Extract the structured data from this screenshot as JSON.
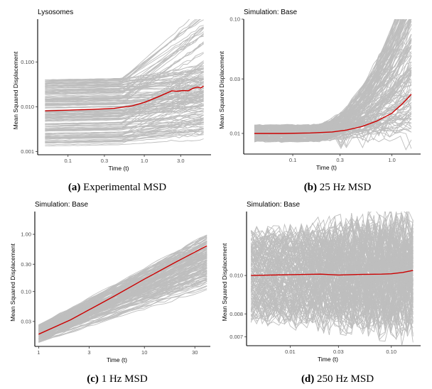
{
  "figure": {
    "captions": [
      {
        "letter": "(a)",
        "text": " Experimental MSD"
      },
      {
        "letter": "(b)",
        "text": " 25 Hz MSD"
      },
      {
        "letter": "(c)",
        "text": " 1 Hz MSD"
      },
      {
        "letter": "(d)",
        "text": " 250 Hz MSD"
      }
    ],
    "colors": {
      "individual": "#bebebe",
      "mean": "#cc0000",
      "axis": "#000000"
    }
  },
  "chart_data": [
    {
      "type": "line",
      "title": "Lysosomes",
      "xlabel": "Time (t)",
      "ylabel": "Mean Squared Displacement",
      "xscale": "log10",
      "yscale": "log10",
      "xlim": [
        0.04,
        7.5
      ],
      "ylim": [
        0.00085,
        0.9
      ],
      "xticks": [
        0.1,
        0.3,
        1.0,
        3.0
      ],
      "xtick_labels": [
        "0.1",
        "0.3",
        "1.0",
        "3.0"
      ],
      "yticks": [
        0.001,
        0.01,
        0.1
      ],
      "ytick_labels": [
        "0.001",
        "0.010",
        "0.100"
      ],
      "legend": "none",
      "grid": false,
      "series": [
        {
          "name": "mean",
          "color": "#cc0000",
          "x": [
            0.05,
            0.1,
            0.2,
            0.4,
            0.7,
            1.0,
            1.5,
            2.3,
            2.7,
            3.2,
            3.8,
            4.4,
            5.0,
            5.5,
            6.0
          ],
          "y": [
            0.0081,
            0.0084,
            0.0087,
            0.0092,
            0.0105,
            0.0125,
            0.0165,
            0.0226,
            0.0222,
            0.023,
            0.0228,
            0.026,
            0.0275,
            0.0262,
            0.029
          ]
        },
        {
          "name": "individual trajectories",
          "color": "#bebebe",
          "count": 150,
          "description": "MSD of individual lysosomes; range at t=0.05 approx 0.0012 to 0.024; range at t=6 approx 0.0035 to 0.6"
        }
      ]
    },
    {
      "type": "line",
      "title": "Simulation: Base",
      "xlabel": "Time (t)",
      "ylabel": "Mean Squared Displacement",
      "xscale": "log10",
      "yscale": "log10",
      "xlim": [
        0.032,
        1.95
      ],
      "ylim": [
        0.0066,
        0.1
      ],
      "xticks": [
        0.1,
        0.3,
        1.0
      ],
      "xtick_labels": [
        "0.1",
        "0.3",
        "1.0"
      ],
      "yticks": [
        0.01,
        0.03,
        0.1
      ],
      "ytick_labels": [
        "0.01",
        "0.03",
        "0.10"
      ],
      "legend": "none",
      "grid": false,
      "series": [
        {
          "name": "mean",
          "color": "#cc0000",
          "x": [
            0.041,
            0.08,
            0.15,
            0.25,
            0.35,
            0.5,
            0.7,
            1.0,
            1.3,
            1.57
          ],
          "y": [
            0.01,
            0.01,
            0.0101,
            0.0103,
            0.0107,
            0.0115,
            0.0128,
            0.015,
            0.0185,
            0.022
          ]
        },
        {
          "name": "individual trajectories",
          "color": "#bebebe",
          "count": 150,
          "description": "simulated trajectories; range at t=0.04 approx 0.0085 to 0.0118; range at t=1.57 approx 0.0075 to 0.088"
        }
      ]
    },
    {
      "type": "line",
      "title": "Simulation: Base",
      "xlabel": "Time (t)",
      "ylabel": "Mean Squared Displacement",
      "xscale": "log10",
      "yscale": "log10",
      "xlim": [
        0.92,
        42
      ],
      "ylim": [
        0.011,
        2.5
      ],
      "xticks": [
        1,
        3,
        10,
        30
      ],
      "xtick_labels": [
        "1",
        "3",
        "10",
        "30"
      ],
      "yticks": [
        0.03,
        0.1,
        0.3,
        1.0
      ],
      "ytick_labels": [
        "0.03",
        "0.10",
        "0.30",
        "1.00"
      ],
      "legend": "none",
      "grid": false,
      "series": [
        {
          "name": "mean",
          "color": "#cc0000",
          "x": [
            1,
            2,
            3,
            5,
            10,
            20,
            39
          ],
          "y": [
            0.018,
            0.032,
            0.048,
            0.08,
            0.165,
            0.33,
            0.63
          ]
        },
        {
          "name": "individual trajectories",
          "color": "#bebebe",
          "count": 150,
          "description": "simulated trajectories; range at t=1 approx 0.013 to 0.026; range at t=39 approx 0.11 to 1.9"
        }
      ]
    },
    {
      "type": "line",
      "title": "Simulation: Base",
      "xlabel": "Time (t)",
      "ylabel": "Mean Squared Displacement",
      "xscale": "log10",
      "yscale": "log10",
      "xlim": [
        0.0037,
        0.195
      ],
      "ylim": [
        0.00665,
        0.0145
      ],
      "xticks": [
        0.01,
        0.03,
        0.1
      ],
      "xtick_labels": [
        "0.01",
        "0.03",
        "0.10"
      ],
      "yticks": [
        0.007,
        0.008,
        0.01
      ],
      "ytick_labels": [
        "0.007",
        "0.008",
        "0.010"
      ],
      "legend": "none",
      "grid": false,
      "series": [
        {
          "name": "mean",
          "color": "#cc0000",
          "x": [
            0.0041,
            0.01,
            0.02,
            0.03,
            0.05,
            0.08,
            0.1,
            0.13,
            0.164
          ],
          "y": [
            0.01,
            0.01005,
            0.01008,
            0.01003,
            0.01006,
            0.01008,
            0.0101,
            0.01018,
            0.0103
          ]
        },
        {
          "name": "individual trajectories",
          "color": "#bebebe",
          "count": 150,
          "description": "simulated trajectories; range approx 0.0075 to 0.0125 at start, widening to approx 0.0069 to 0.0140 at t=0.16"
        }
      ]
    }
  ]
}
